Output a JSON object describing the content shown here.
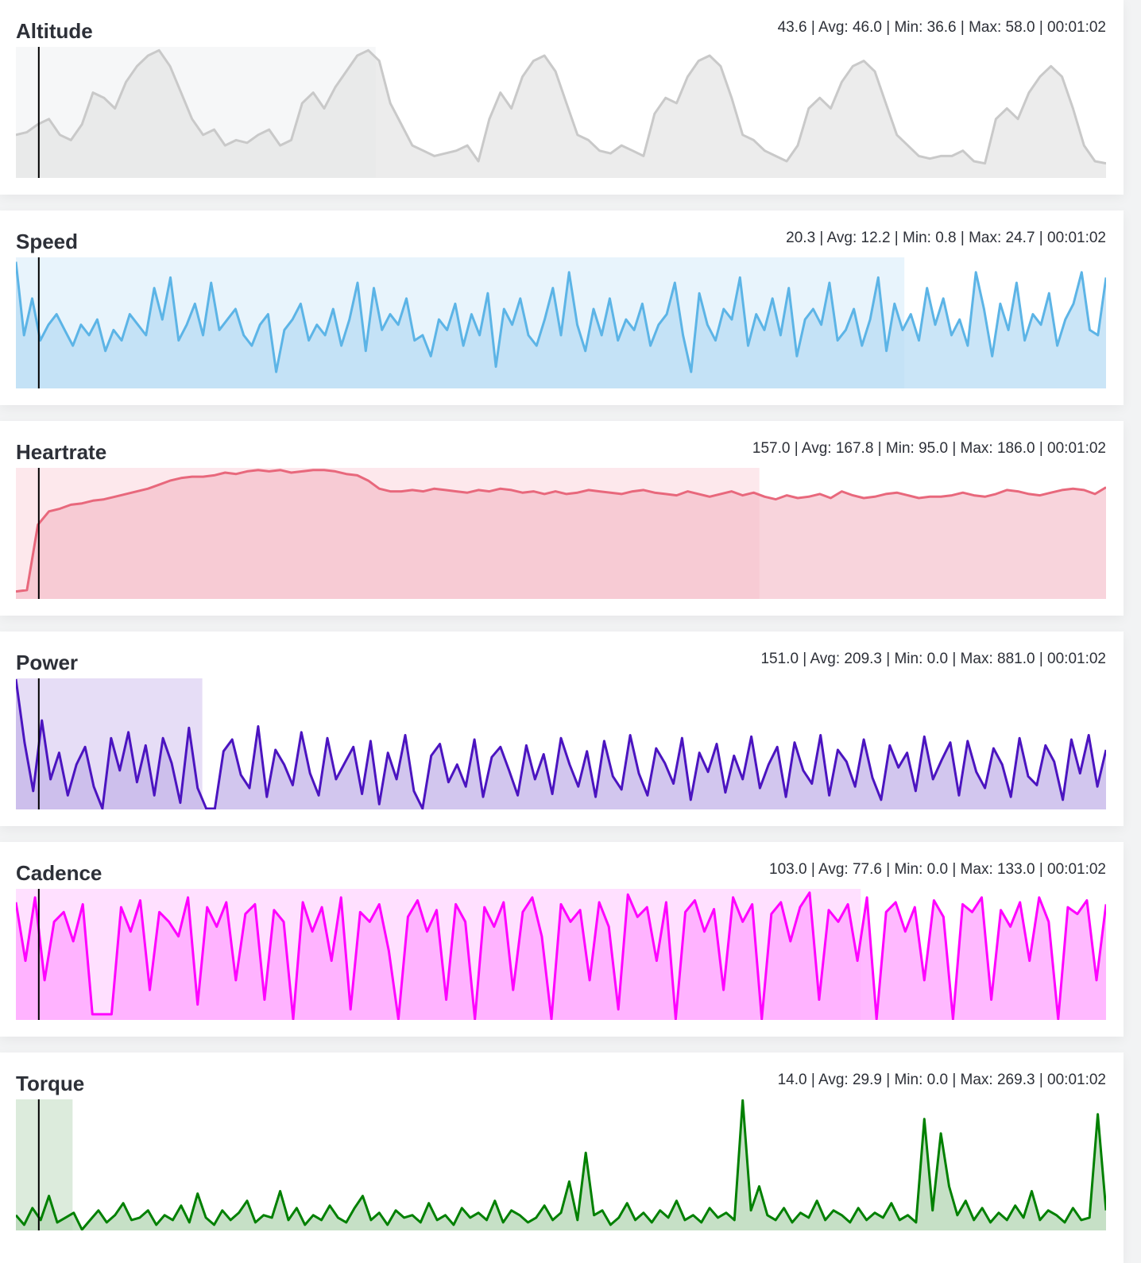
{
  "chart_data": [
    {
      "type": "area",
      "title": "Altitude",
      "stats": "43.6 | Avg: 46.0 | Min: 36.6 | Max: 58.0 | 00:01:02",
      "ylim": [
        34,
        58.5
      ],
      "line_color": "#c9c9c9",
      "fill_color": "#e4e4e4",
      "highlight_color": "#f6f7f8",
      "highlight_fraction": 0.33,
      "fill_opacity": 0.7,
      "values": [
        42,
        42.5,
        44,
        45,
        42,
        41,
        44,
        50,
        49,
        47,
        52,
        55,
        57,
        58,
        55,
        50,
        45,
        42,
        43,
        40,
        41,
        40.5,
        42,
        43,
        40,
        41,
        48,
        50,
        47,
        51,
        54,
        57,
        58,
        56,
        48,
        44,
        40,
        39,
        38,
        38.5,
        39,
        40,
        37,
        45,
        50,
        47,
        53,
        56,
        57,
        54,
        48,
        42,
        41,
        39,
        38.5,
        40,
        39,
        38,
        46,
        49,
        48,
        53,
        56,
        57,
        55,
        49,
        42,
        41,
        39,
        38,
        37,
        40,
        47,
        49,
        47,
        52,
        55,
        56,
        54,
        48,
        42,
        40,
        38,
        37.5,
        38,
        38,
        39,
        37,
        36.6,
        45,
        47,
        45,
        50,
        53,
        55,
        53,
        47,
        40,
        37,
        36.6
      ]
    },
    {
      "type": "area",
      "title": "Speed",
      "stats": "20.3 | Avg: 12.2 | Min: 0.8 | Max: 24.7 | 00:01:02",
      "ylim": [
        0,
        24.7
      ],
      "line_color": "#5cb4e6",
      "fill_color": "#b8dcf4",
      "highlight_color": "#e8f4fc",
      "highlight_fraction": 0.815,
      "fill_opacity": 0.75,
      "values": [
        24,
        10,
        17,
        9,
        12,
        14,
        11,
        8,
        12,
        10,
        13,
        7,
        11,
        9,
        14,
        12,
        10,
        19,
        13,
        21,
        9,
        12,
        16,
        10,
        20,
        11,
        13,
        15,
        10,
        8,
        12,
        14,
        3,
        11,
        13,
        16,
        9,
        12,
        10,
        15,
        8,
        13,
        20,
        7,
        19,
        11,
        14,
        12,
        17,
        9,
        10,
        6,
        13,
        11,
        16,
        8,
        14,
        10,
        18,
        4,
        15,
        12,
        17,
        10,
        8,
        13,
        19,
        10,
        22,
        12,
        7,
        15,
        10,
        17,
        9,
        13,
        11,
        16,
        8,
        12,
        14,
        20,
        10,
        3,
        18,
        12,
        9,
        15,
        13,
        21,
        8,
        14,
        11,
        17,
        10,
        19,
        6,
        13,
        15,
        12,
        20,
        9,
        11,
        15,
        8,
        13,
        21,
        7,
        16,
        11,
        14,
        9,
        19,
        12,
        17,
        10,
        13,
        8,
        22,
        15,
        6,
        16,
        11,
        20,
        9,
        14,
        12,
        18,
        8,
        13,
        16,
        22,
        11,
        10,
        21
      ]
    },
    {
      "type": "area",
      "title": "Heartrate",
      "stats": "157.0 | Avg: 167.8 | Min: 95.0 | Max: 186.0 | 00:01:02",
      "ylim": [
        90,
        187
      ],
      "line_color": "#e8687c",
      "fill_color": "#f4b8c4",
      "highlight_color": "#fde8ec",
      "highlight_fraction": 0.682,
      "fill_opacity": 0.6,
      "values": [
        95,
        96,
        145,
        155,
        157,
        160,
        161,
        163,
        164,
        166,
        168,
        170,
        172,
        175,
        178,
        180,
        181,
        181,
        182,
        184,
        183,
        185,
        186,
        185,
        186,
        184,
        185,
        186,
        186,
        185,
        183,
        182,
        178,
        172,
        170,
        170,
        171,
        170,
        172,
        171,
        170,
        169,
        171,
        170,
        172,
        171,
        169,
        170,
        168,
        170,
        168,
        169,
        171,
        170,
        169,
        168,
        170,
        171,
        169,
        168,
        167,
        170,
        168,
        166,
        168,
        170,
        167,
        169,
        166,
        164,
        167,
        165,
        166,
        168,
        165,
        170,
        167,
        165,
        166,
        168,
        169,
        167,
        165,
        166,
        166,
        167,
        169,
        167,
        166,
        168,
        171,
        170,
        168,
        167,
        169,
        171,
        172,
        171,
        168,
        173
      ]
    },
    {
      "type": "area",
      "title": "Power",
      "stats": "151.0 | Avg: 209.3 | Min: 0.0 | Max: 881.0 | 00:01:02",
      "ylim": [
        0,
        881
      ],
      "line_color": "#4b14c0",
      "fill_color": "#c7b8ea",
      "highlight_color": "#e6ddf6",
      "highlight_fraction": 0.171,
      "fill_opacity": 0.8,
      "values": [
        881,
        450,
        120,
        600,
        200,
        380,
        90,
        300,
        420,
        150,
        0,
        480,
        260,
        520,
        180,
        430,
        90,
        480,
        310,
        40,
        550,
        140,
        0,
        0,
        390,
        470,
        230,
        140,
        560,
        80,
        400,
        300,
        160,
        520,
        240,
        90,
        480,
        200,
        310,
        420,
        100,
        460,
        30,
        380,
        200,
        500,
        120,
        0,
        360,
        440,
        180,
        300,
        150,
        470,
        80,
        350,
        420,
        260,
        90,
        430,
        200,
        370,
        100,
        480,
        300,
        150,
        390,
        80,
        460,
        220,
        130,
        500,
        240,
        90,
        410,
        310,
        170,
        480,
        60,
        380,
        250,
        440,
        110,
        360,
        200,
        490,
        140,
        300,
        420,
        80,
        450,
        260,
        170,
        500,
        90,
        400,
        320,
        150,
        470,
        210,
        60,
        430,
        280,
        380,
        120,
        490,
        200,
        330,
        450,
        90,
        460,
        250,
        140,
        410,
        300,
        80,
        480,
        220,
        160,
        430,
        320,
        60,
        470,
        240,
        500,
        150,
        400
      ]
    },
    {
      "type": "area",
      "title": "Cadence",
      "stats": "103.0 | Avg: 77.6 | Min: 0.0 | Max: 133.0 | 00:01:02",
      "ylim": [
        0,
        133
      ],
      "line_color": "#ff00ff",
      "fill_color": "#ffa8ff",
      "highlight_color": "#ffe0ff",
      "highlight_fraction": 0.775,
      "fill_opacity": 0.8,
      "values": [
        120,
        60,
        125,
        40,
        100,
        110,
        80,
        118,
        5,
        5,
        5,
        115,
        90,
        122,
        30,
        110,
        100,
        85,
        125,
        15,
        115,
        95,
        120,
        40,
        108,
        118,
        20,
        112,
        100,
        0,
        120,
        90,
        115,
        60,
        125,
        10,
        110,
        100,
        118,
        70,
        0,
        105,
        122,
        90,
        112,
        20,
        118,
        100,
        0,
        115,
        95,
        120,
        30,
        110,
        125,
        85,
        0,
        118,
        100,
        112,
        40,
        120,
        95,
        10,
        128,
        105,
        115,
        60,
        120,
        0,
        110,
        122,
        90,
        113,
        30,
        125,
        100,
        118,
        0,
        108,
        120,
        80,
        115,
        130,
        20,
        112,
        100,
        118,
        60,
        125,
        0,
        110,
        120,
        90,
        115,
        40,
        122,
        105,
        0,
        118,
        110,
        125,
        20,
        112,
        95,
        120,
        60,
        125,
        100,
        0,
        115,
        108,
        122,
        40,
        118
      ]
    },
    {
      "type": "area",
      "title": "Torque",
      "stats": "14.0 | Avg: 29.9 | Min: 0.0 | Max: 269.3 | 00:01:02",
      "ylim": [
        0,
        269.3
      ],
      "line_color": "#008000",
      "fill_color": "#b8d8b8",
      "highlight_color": "#dcebdc",
      "highlight_fraction": 0.052,
      "fill_opacity": 0.8,
      "values": [
        30,
        10,
        45,
        20,
        70,
        15,
        25,
        35,
        0,
        20,
        40,
        15,
        30,
        55,
        20,
        25,
        40,
        10,
        30,
        20,
        50,
        15,
        75,
        25,
        10,
        40,
        20,
        35,
        60,
        15,
        30,
        25,
        80,
        20,
        45,
        10,
        30,
        20,
        50,
        25,
        15,
        45,
        70,
        20,
        35,
        10,
        40,
        25,
        30,
        15,
        55,
        20,
        30,
        10,
        45,
        25,
        35,
        20,
        60,
        15,
        40,
        30,
        15,
        25,
        50,
        20,
        35,
        100,
        20,
        160,
        30,
        40,
        10,
        25,
        55,
        20,
        35,
        15,
        40,
        25,
        60,
        20,
        30,
        15,
        45,
        25,
        35,
        20,
        269,
        40,
        90,
        30,
        20,
        45,
        15,
        35,
        25,
        60,
        20,
        40,
        30,
        15,
        45,
        20,
        35,
        25,
        55,
        20,
        30,
        15,
        230,
        40,
        200,
        90,
        30,
        60,
        20,
        45,
        15,
        35,
        20,
        50,
        25,
        80,
        20,
        40,
        30,
        15,
        45,
        20,
        25,
        240,
        40
      ]
    }
  ]
}
